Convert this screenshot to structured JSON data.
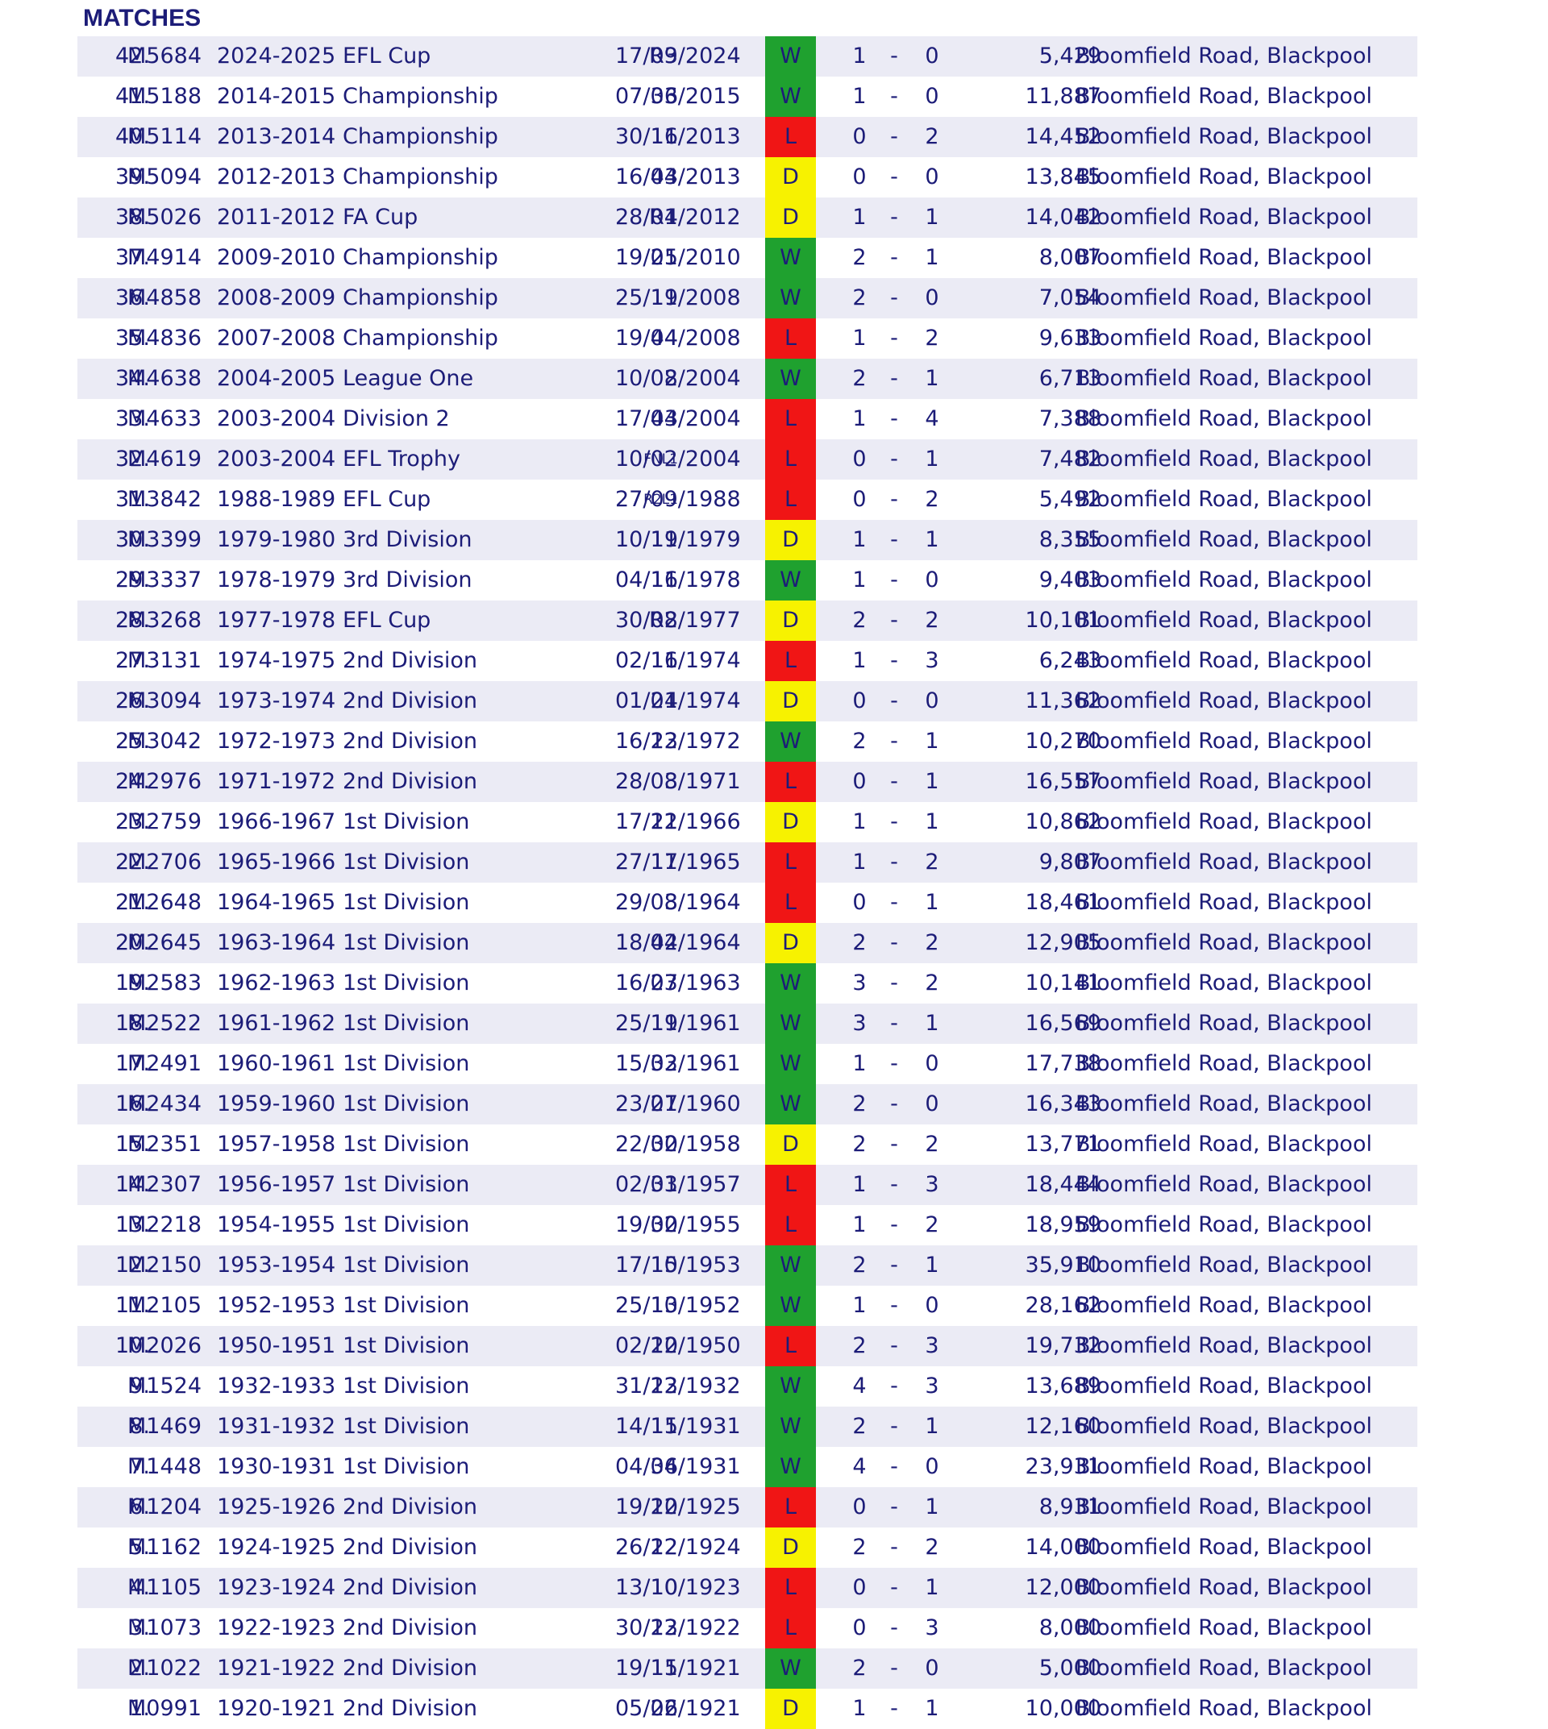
{
  "title": "MATCHES",
  "colors": {
    "win": "#1fa12f",
    "loss": "#f01515",
    "draw": "#f7f200",
    "text": "#1c1c78",
    "row_shade": "#ebebf5"
  },
  "matches": [
    {
      "num": "42.",
      "code": "M5684",
      "season": "2024-2025",
      "competition": "EFL Cup",
      "round": "R3",
      "round_small": false,
      "date": "17/09/2024",
      "result": "W",
      "home": "1",
      "dash": "-",
      "away": "0",
      "attendance": "5,429",
      "venue": "Bloomfield Road, Blackpool"
    },
    {
      "num": "41.",
      "code": "M5188",
      "season": "2014-2015",
      "competition": "Championship",
      "round": "36",
      "round_small": false,
      "date": "07/03/2015",
      "result": "W",
      "home": "1",
      "dash": "-",
      "away": "0",
      "attendance": "11,887",
      "venue": "Bloomfield Road, Blackpool"
    },
    {
      "num": "40.",
      "code": "M5114",
      "season": "2013-2014",
      "competition": "Championship",
      "round": "16",
      "round_small": false,
      "date": "30/11/2013",
      "result": "L",
      "home": "0",
      "dash": "-",
      "away": "2",
      "attendance": "14,452",
      "venue": "Bloomfield Road, Blackpool"
    },
    {
      "num": "39.",
      "code": "M5094",
      "season": "2012-2013",
      "competition": "Championship",
      "round": "43",
      "round_small": false,
      "date": "16/04/2013",
      "result": "D",
      "home": "0",
      "dash": "-",
      "away": "0",
      "attendance": "13,845",
      "venue": "Bloomfield Road, Blackpool"
    },
    {
      "num": "38.",
      "code": "M5026",
      "season": "2011-2012",
      "competition": "FA Cup",
      "round": "R4",
      "round_small": false,
      "date": "28/01/2012",
      "result": "D",
      "home": "1",
      "dash": "-",
      "away": "1",
      "attendance": "14,042",
      "venue": "Bloomfield Road, Blackpool"
    },
    {
      "num": "37.",
      "code": "M4914",
      "season": "2009-2010",
      "competition": "Championship",
      "round": "25",
      "round_small": false,
      "date": "19/01/2010",
      "result": "W",
      "home": "2",
      "dash": "-",
      "away": "1",
      "attendance": "8,007",
      "venue": "Bloomfield Road, Blackpool"
    },
    {
      "num": "36.",
      "code": "M4858",
      "season": "2008-2009",
      "competition": "Championship",
      "round": "19",
      "round_small": false,
      "date": "25/11/2008",
      "result": "W",
      "home": "2",
      "dash": "-",
      "away": "0",
      "attendance": "7,054",
      "venue": "Bloomfield Road, Blackpool"
    },
    {
      "num": "35.",
      "code": "M4836",
      "season": "2007-2008",
      "competition": "Championship",
      "round": "44",
      "round_small": false,
      "date": "19/04/2008",
      "result": "L",
      "home": "1",
      "dash": "-",
      "away": "2",
      "attendance": "9,633",
      "venue": "Bloomfield Road, Blackpool"
    },
    {
      "num": "34.",
      "code": "M4638",
      "season": "2004-2005",
      "competition": "League One",
      "round": "2",
      "round_small": false,
      "date": "10/08/2004",
      "result": "W",
      "home": "2",
      "dash": "-",
      "away": "1",
      "attendance": "6,713",
      "venue": "Bloomfield Road, Blackpool"
    },
    {
      "num": "33.",
      "code": "M4633",
      "season": "2003-2004",
      "competition": "Division 2",
      "round": "43",
      "round_small": false,
      "date": "17/04/2004",
      "result": "L",
      "home": "1",
      "dash": "-",
      "away": "4",
      "attendance": "7,388",
      "venue": "Bloomfield Road, Blackpool"
    },
    {
      "num": "32.",
      "code": "M4619",
      "season": "2003-2004",
      "competition": "EFL Trophy",
      "round": "FNL1",
      "round_small": true,
      "date": "10/02/2004",
      "result": "L",
      "home": "0",
      "dash": "-",
      "away": "1",
      "attendance": "7,482",
      "venue": "Bloomfield Road, Blackpool"
    },
    {
      "num": "31.",
      "code": "M3842",
      "season": "1988-1989",
      "competition": "EFL Cup",
      "round": "R2L1",
      "round_small": true,
      "date": "27/09/1988",
      "result": "L",
      "home": "0",
      "dash": "-",
      "away": "2",
      "attendance": "5,492",
      "venue": "Bloomfield Road, Blackpool"
    },
    {
      "num": "30.",
      "code": "M3399",
      "season": "1979-1980",
      "competition": "3rd Division",
      "round": "19",
      "round_small": false,
      "date": "10/11/1979",
      "result": "D",
      "home": "1",
      "dash": "-",
      "away": "1",
      "attendance": "8,355",
      "venue": "Bloomfield Road, Blackpool"
    },
    {
      "num": "29.",
      "code": "M3337",
      "season": "1978-1979",
      "competition": "3rd Division",
      "round": "16",
      "round_small": false,
      "date": "04/11/1978",
      "result": "W",
      "home": "1",
      "dash": "-",
      "away": "0",
      "attendance": "9,403",
      "venue": "Bloomfield Road, Blackpool"
    },
    {
      "num": "28.",
      "code": "M3268",
      "season": "1977-1978",
      "competition": "EFL Cup",
      "round": "R2",
      "round_small": false,
      "date": "30/08/1977",
      "result": "D",
      "home": "2",
      "dash": "-",
      "away": "2",
      "attendance": "10,101",
      "venue": "Bloomfield Road, Blackpool"
    },
    {
      "num": "27.",
      "code": "M3131",
      "season": "1974-1975",
      "competition": "2nd Division",
      "round": "16",
      "round_small": false,
      "date": "02/11/1974",
      "result": "L",
      "home": "1",
      "dash": "-",
      "away": "3",
      "attendance": "6,243",
      "venue": "Bloomfield Road, Blackpool"
    },
    {
      "num": "26.",
      "code": "M3094",
      "season": "1973-1974",
      "competition": "2nd Division",
      "round": "24",
      "round_small": false,
      "date": "01/01/1974",
      "result": "D",
      "home": "0",
      "dash": "-",
      "away": "0",
      "attendance": "11,362",
      "venue": "Bloomfield Road, Blackpool"
    },
    {
      "num": "25.",
      "code": "M3042",
      "season": "1972-1973",
      "competition": "2nd Division",
      "round": "23",
      "round_small": false,
      "date": "16/12/1972",
      "result": "W",
      "home": "2",
      "dash": "-",
      "away": "1",
      "attendance": "10,270",
      "venue": "Bloomfield Road, Blackpool"
    },
    {
      "num": "24.",
      "code": "M2976",
      "season": "1971-1972",
      "competition": "2nd Division",
      "round": "3",
      "round_small": false,
      "date": "28/08/1971",
      "result": "L",
      "home": "0",
      "dash": "-",
      "away": "1",
      "attendance": "16,557",
      "venue": "Bloomfield Road, Blackpool"
    },
    {
      "num": "23.",
      "code": "M2759",
      "season": "1966-1967",
      "competition": "1st Division",
      "round": "21",
      "round_small": false,
      "date": "17/12/1966",
      "result": "D",
      "home": "1",
      "dash": "-",
      "away": "1",
      "attendance": "10,862",
      "venue": "Bloomfield Road, Blackpool"
    },
    {
      "num": "22.",
      "code": "M2706",
      "season": "1965-1966",
      "competition": "1st Division",
      "round": "17",
      "round_small": false,
      "date": "27/11/1965",
      "result": "L",
      "home": "1",
      "dash": "-",
      "away": "2",
      "attendance": "9,807",
      "venue": "Bloomfield Road, Blackpool"
    },
    {
      "num": "21.",
      "code": "M2648",
      "season": "1964-1965",
      "competition": "1st Division",
      "round": "3",
      "round_small": false,
      "date": "29/08/1964",
      "result": "L",
      "home": "0",
      "dash": "-",
      "away": "1",
      "attendance": "18,461",
      "venue": "Bloomfield Road, Blackpool"
    },
    {
      "num": "20.",
      "code": "M2645",
      "season": "1963-1964",
      "competition": "1st Division",
      "round": "42",
      "round_small": false,
      "date": "18/04/1964",
      "result": "D",
      "home": "2",
      "dash": "-",
      "away": "2",
      "attendance": "12,905",
      "venue": "Bloomfield Road, Blackpool"
    },
    {
      "num": "19.",
      "code": "M2583",
      "season": "1962-1963",
      "competition": "1st Division",
      "round": "27",
      "round_small": false,
      "date": "16/03/1963",
      "result": "W",
      "home": "3",
      "dash": "-",
      "away": "2",
      "attendance": "10,141",
      "venue": "Bloomfield Road, Blackpool"
    },
    {
      "num": "18.",
      "code": "M2522",
      "season": "1961-1962",
      "competition": "1st Division",
      "round": "19",
      "round_small": false,
      "date": "25/11/1961",
      "result": "W",
      "home": "3",
      "dash": "-",
      "away": "1",
      "attendance": "16,569",
      "venue": "Bloomfield Road, Blackpool"
    },
    {
      "num": "17.",
      "code": "M2491",
      "season": "1960-1961",
      "competition": "1st Division",
      "round": "32",
      "round_small": false,
      "date": "15/03/1961",
      "result": "W",
      "home": "1",
      "dash": "-",
      "away": "0",
      "attendance": "17,738",
      "venue": "Bloomfield Road, Blackpool"
    },
    {
      "num": "16.",
      "code": "M2434",
      "season": "1959-1960",
      "competition": "1st Division",
      "round": "27",
      "round_small": false,
      "date": "23/01/1960",
      "result": "W",
      "home": "2",
      "dash": "-",
      "away": "0",
      "attendance": "16,343",
      "venue": "Bloomfield Road, Blackpool"
    },
    {
      "num": "15.",
      "code": "M2351",
      "season": "1957-1958",
      "competition": "1st Division",
      "round": "30",
      "round_small": false,
      "date": "22/02/1958",
      "result": "D",
      "home": "2",
      "dash": "-",
      "away": "2",
      "attendance": "13,771",
      "venue": "Bloomfield Road, Blackpool"
    },
    {
      "num": "14.",
      "code": "M2307",
      "season": "1956-1957",
      "competition": "1st Division",
      "round": "31",
      "round_small": false,
      "date": "02/03/1957",
      "result": "L",
      "home": "1",
      "dash": "-",
      "away": "3",
      "attendance": "18,444",
      "venue": "Bloomfield Road, Blackpool"
    },
    {
      "num": "13.",
      "code": "M2218",
      "season": "1954-1955",
      "competition": "1st Division",
      "round": "30",
      "round_small": false,
      "date": "19/02/1955",
      "result": "L",
      "home": "1",
      "dash": "-",
      "away": "2",
      "attendance": "18,959",
      "venue": "Bloomfield Road, Blackpool"
    },
    {
      "num": "12.",
      "code": "M2150",
      "season": "1953-1954",
      "competition": "1st Division",
      "round": "15",
      "round_small": false,
      "date": "17/10/1953",
      "result": "W",
      "home": "2",
      "dash": "-",
      "away": "1",
      "attendance": "35,910",
      "venue": "Bloomfield Road, Blackpool"
    },
    {
      "num": "11.",
      "code": "M2105",
      "season": "1952-1953",
      "competition": "1st Division",
      "round": "13",
      "round_small": false,
      "date": "25/10/1952",
      "result": "W",
      "home": "1",
      "dash": "-",
      "away": "0",
      "attendance": "28,162",
      "venue": "Bloomfield Road, Blackpool"
    },
    {
      "num": "10.",
      "code": "M2026",
      "season": "1950-1951",
      "competition": "1st Division",
      "round": "20",
      "round_small": false,
      "date": "02/12/1950",
      "result": "L",
      "home": "2",
      "dash": "-",
      "away": "3",
      "attendance": "19,732",
      "venue": "Bloomfield Road, Blackpool"
    },
    {
      "num": "9.",
      "code": "M1524",
      "season": "1932-1933",
      "competition": "1st Division",
      "round": "23",
      "round_small": false,
      "date": "31/12/1932",
      "result": "W",
      "home": "4",
      "dash": "-",
      "away": "3",
      "attendance": "13,689",
      "venue": "Bloomfield Road, Blackpool"
    },
    {
      "num": "8.",
      "code": "M1469",
      "season": "1931-1932",
      "competition": "1st Division",
      "round": "15",
      "round_small": false,
      "date": "14/11/1931",
      "result": "W",
      "home": "2",
      "dash": "-",
      "away": "1",
      "attendance": "12,160",
      "venue": "Bloomfield Road, Blackpool"
    },
    {
      "num": "7.",
      "code": "M1448",
      "season": "1930-1931",
      "competition": "1st Division",
      "round": "36",
      "round_small": false,
      "date": "04/04/1931",
      "result": "W",
      "home": "4",
      "dash": "-",
      "away": "0",
      "attendance": "23,931",
      "venue": "Bloomfield Road, Blackpool"
    },
    {
      "num": "6.",
      "code": "M1204",
      "season": "1925-1926",
      "competition": "2nd Division",
      "round": "20",
      "round_small": false,
      "date": "19/12/1925",
      "result": "L",
      "home": "0",
      "dash": "-",
      "away": "1",
      "attendance": "8,931",
      "venue": "Bloomfield Road, Blackpool"
    },
    {
      "num": "5.",
      "code": "M1162",
      "season": "1924-1925",
      "competition": "2nd Division",
      "round": "22",
      "round_small": false,
      "date": "26/12/1924",
      "result": "D",
      "home": "2",
      "dash": "-",
      "away": "2",
      "attendance": "14,000",
      "venue": "Bloomfield Road, Blackpool"
    },
    {
      "num": "4.",
      "code": "M1105",
      "season": "1923-1924",
      "competition": "2nd Division",
      "round": "10",
      "round_small": false,
      "date": "13/10/1923",
      "result": "L",
      "home": "0",
      "dash": "-",
      "away": "1",
      "attendance": "12,000",
      "venue": "Bloomfield Road, Blackpool"
    },
    {
      "num": "3.",
      "code": "M1073",
      "season": "1922-1923",
      "competition": "2nd Division",
      "round": "23",
      "round_small": false,
      "date": "30/12/1922",
      "result": "L",
      "home": "0",
      "dash": "-",
      "away": "3",
      "attendance": "8,000",
      "venue": "Bloomfield Road, Blackpool"
    },
    {
      "num": "2.",
      "code": "M1022",
      "season": "1921-1922",
      "competition": "2nd Division",
      "round": "15",
      "round_small": false,
      "date": "19/11/1921",
      "result": "W",
      "home": "2",
      "dash": "-",
      "away": "0",
      "attendance": "5,000",
      "venue": "Bloomfield Road, Blackpool"
    },
    {
      "num": "1.",
      "code": "M0991",
      "season": "1920-1921",
      "competition": "2nd Division",
      "round": "26",
      "round_small": false,
      "date": "05/02/1921",
      "result": "D",
      "home": "1",
      "dash": "-",
      "away": "1",
      "attendance": "10,000",
      "venue": "Bloomfield Road, Blackpool"
    }
  ]
}
